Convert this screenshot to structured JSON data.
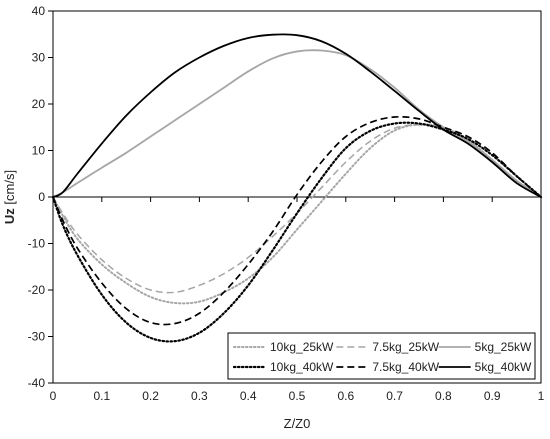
{
  "chart_data": {
    "type": "line",
    "title": "",
    "xlabel": "Z/Z0",
    "ylabel_bold": "Uz",
    "ylabel_unit": " [cm/s]",
    "xlim": [
      0,
      1
    ],
    "ylim": [
      -40,
      40
    ],
    "x_ticks": [
      0,
      0.1,
      0.2,
      0.3,
      0.4,
      0.5,
      0.6,
      0.7,
      0.8,
      0.9,
      1
    ],
    "x_tick_labels": [
      "0",
      "0.1",
      "0.2",
      "0.3",
      "0.4",
      "0.5",
      "0.6",
      "0.7",
      "0.8",
      "0.9",
      "1"
    ],
    "y_ticks": [
      -40,
      -30,
      -20,
      -10,
      0,
      10,
      20,
      30,
      40
    ],
    "y_tick_labels": [
      "-40",
      "-30",
      "-20",
      "-10",
      "0",
      "10",
      "20",
      "30",
      "40"
    ],
    "grid": false,
    "legend_position": "bottom-right",
    "series": [
      {
        "name": "10kg_25kW",
        "style": "dotted-gray",
        "color": "#a6a6a6",
        "x": [
          0,
          0.02,
          0.05,
          0.1,
          0.15,
          0.2,
          0.25,
          0.3,
          0.35,
          0.4,
          0.45,
          0.5,
          0.55,
          0.6,
          0.65,
          0.7,
          0.75,
          0.8,
          0.85,
          0.9,
          0.95,
          1.0
        ],
        "y": [
          0,
          -4,
          -9,
          -14.5,
          -18.5,
          -21.5,
          -22.8,
          -22.5,
          -20.5,
          -17.5,
          -13,
          -7,
          -1,
          5,
          10.5,
          14.3,
          15.6,
          15,
          12.2,
          8,
          3.5,
          0
        ]
      },
      {
        "name": "7.5kg_25kW",
        "style": "dashed-gray",
        "color": "#a6a6a6",
        "x": [
          0,
          0.02,
          0.05,
          0.1,
          0.15,
          0.2,
          0.25,
          0.3,
          0.35,
          0.4,
          0.45,
          0.5,
          0.55,
          0.6,
          0.65,
          0.7,
          0.75,
          0.8,
          0.85,
          0.9,
          0.95,
          1.0
        ],
        "y": [
          0,
          -3.5,
          -8,
          -13.5,
          -17.5,
          -20,
          -20.5,
          -19,
          -16.5,
          -13,
          -8.5,
          -3.5,
          2,
          7.5,
          12,
          14.8,
          15.5,
          14.5,
          12,
          8,
          3.5,
          0
        ]
      },
      {
        "name": "5kg_25kW",
        "style": "solid-gray",
        "color": "#a6a6a6",
        "x": [
          0,
          0.02,
          0.05,
          0.1,
          0.15,
          0.2,
          0.25,
          0.3,
          0.35,
          0.4,
          0.45,
          0.5,
          0.55,
          0.6,
          0.65,
          0.7,
          0.75,
          0.8,
          0.85,
          0.9,
          0.95,
          1.0
        ],
        "y": [
          0,
          1,
          3,
          6.3,
          9.5,
          13,
          16.5,
          20,
          23.5,
          27,
          29.8,
          31.3,
          31.5,
          30.5,
          27.5,
          23.5,
          18.8,
          15,
          12,
          8,
          3.5,
          0
        ]
      },
      {
        "name": "10kg_40kW",
        "style": "dotted-black",
        "color": "#000000",
        "x": [
          0,
          0.02,
          0.05,
          0.1,
          0.15,
          0.2,
          0.25,
          0.3,
          0.35,
          0.4,
          0.45,
          0.5,
          0.55,
          0.6,
          0.65,
          0.7,
          0.75,
          0.8,
          0.85,
          0.9,
          0.95,
          1.0
        ],
        "y": [
          0,
          -6,
          -12.5,
          -21,
          -27,
          -30.3,
          -31,
          -29.2,
          -25,
          -19,
          -11.5,
          -3.5,
          4,
          10.5,
          14.2,
          15.8,
          15.8,
          14.5,
          12.5,
          9,
          4.5,
          0
        ]
      },
      {
        "name": "7.5kg_40kW",
        "style": "dashed-black",
        "color": "#000000",
        "x": [
          0,
          0.02,
          0.05,
          0.1,
          0.15,
          0.2,
          0.25,
          0.3,
          0.35,
          0.4,
          0.45,
          0.5,
          0.55,
          0.6,
          0.65,
          0.7,
          0.75,
          0.8,
          0.85,
          0.9,
          0.95,
          1.0
        ],
        "y": [
          0,
          -5,
          -11,
          -18.5,
          -24,
          -27,
          -27.2,
          -25,
          -20.5,
          -14.5,
          -7.5,
          0.5,
          7.5,
          13,
          16,
          17.2,
          16.8,
          15,
          13,
          9.5,
          4.5,
          0
        ]
      },
      {
        "name": "5kg_40kW",
        "style": "solid-black",
        "color": "#000000",
        "x": [
          0,
          0.02,
          0.05,
          0.1,
          0.15,
          0.2,
          0.25,
          0.3,
          0.35,
          0.4,
          0.45,
          0.5,
          0.55,
          0.6,
          0.65,
          0.7,
          0.75,
          0.8,
          0.85,
          0.9,
          0.95,
          1.0
        ],
        "y": [
          0,
          1,
          5,
          11.5,
          17.5,
          22.5,
          26.8,
          30,
          32.5,
          34.2,
          34.9,
          34.8,
          33.5,
          30.8,
          27,
          22.8,
          18.5,
          14.5,
          11.5,
          7.5,
          3,
          0
        ]
      }
    ]
  }
}
